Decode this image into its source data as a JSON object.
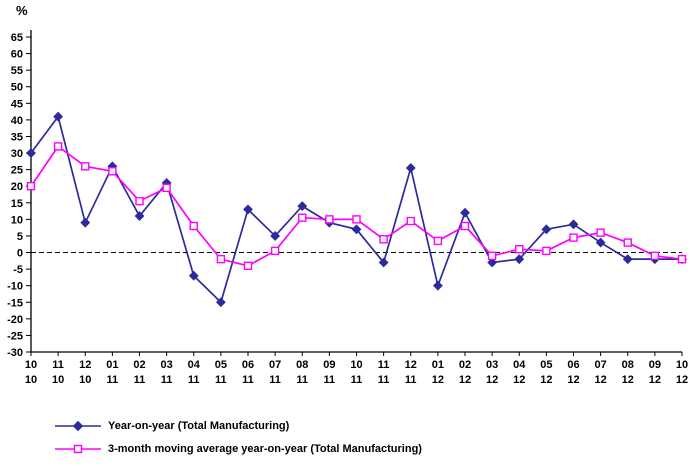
{
  "chart_data": {
    "type": "line",
    "title": "",
    "ylabel": "%",
    "xlabel": "",
    "ylim": [
      -30,
      65
    ],
    "ytick_step": 5,
    "grid": false,
    "zero_line": true,
    "legend_position": "bottom-left",
    "y_ticks": [
      65,
      60,
      55,
      50,
      45,
      40,
      35,
      30,
      25,
      20,
      15,
      10,
      5,
      0,
      -5,
      -10,
      -15,
      -20,
      -25,
      -30
    ],
    "categories_month": [
      "10",
      "11",
      "12",
      "01",
      "02",
      "03",
      "04",
      "05",
      "06",
      "07",
      "08",
      "09",
      "10",
      "11",
      "12",
      "01",
      "02",
      "03",
      "04",
      "05",
      "06",
      "07",
      "08",
      "09",
      "10"
    ],
    "categories_year": [
      "10",
      "10",
      "10",
      "11",
      "11",
      "11",
      "11",
      "11",
      "11",
      "11",
      "11",
      "11",
      "11",
      "11",
      "11",
      "12",
      "12",
      "12",
      "12",
      "12",
      "12",
      "12",
      "12",
      "12",
      "12"
    ],
    "series": [
      {
        "name": "Year-on-year (Total Manufacturing)",
        "color": "#2b2b9c",
        "marker": "diamond",
        "values": [
          30,
          41,
          9,
          26,
          11,
          21,
          -7,
          -15,
          13,
          5,
          14,
          9,
          7,
          -3,
          25.5,
          -10,
          12,
          -3,
          -2,
          7,
          8.5,
          3,
          -2,
          -2,
          -2
        ]
      },
      {
        "name": "3-month moving average year-on-year (Total Manufacturing)",
        "color": "#ff00ff",
        "marker": "square",
        "values": [
          20,
          32,
          26,
          24.5,
          15.5,
          19.5,
          8,
          -2,
          -4,
          0.5,
          10.5,
          10,
          10,
          4,
          9.5,
          3.5,
          8,
          -1,
          1,
          0.5,
          4.5,
          6,
          3,
          -1,
          -2
        ]
      }
    ]
  }
}
